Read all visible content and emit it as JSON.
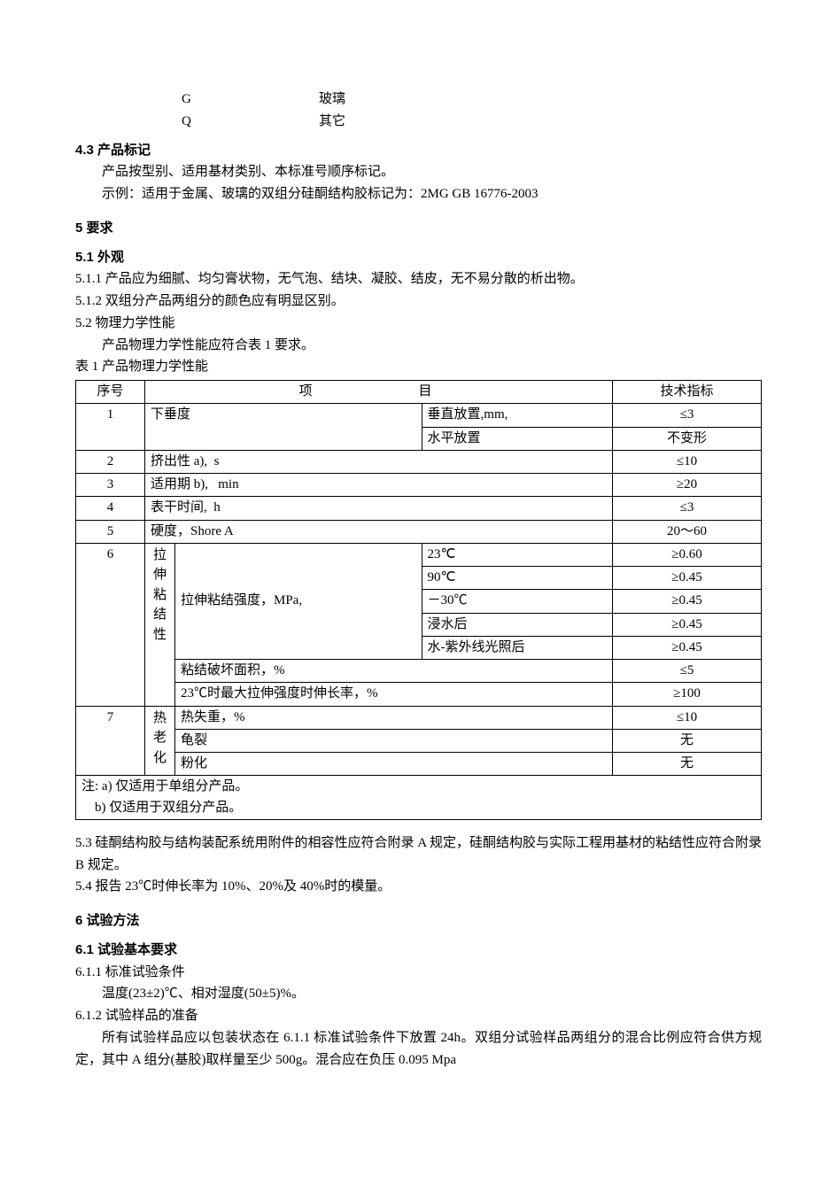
{
  "codes": {
    "g_code": "G",
    "g_label": "玻璃",
    "q_code": "Q",
    "q_label": "其它"
  },
  "s43": {
    "head": "4.3  产品标记",
    "p1": "产品按型别、适用基材类别、本标准号顺序标记。",
    "p2": "示例：适用于金属、玻璃的双组分硅酮结构胶标记为：2MG GB 16776-2003"
  },
  "s5": {
    "head": "5  要求",
    "s51_head": "5.1  外观",
    "s511": "5.1.1  产品应为细腻、均匀膏状物，无气泡、结块、凝胶、结皮，无不易分散的析出物。",
    "s512": "5.1.2  双组分产品两组分的颜色应有明显区别。",
    "s52_head": "5.2  物理力学性能",
    "s52_p": "产品物理力学性能应符合表 1 要求。",
    "table_title": "表 1  产品物理力学性能",
    "col_seq": "序号",
    "col_item": "项　　目",
    "col_tech": "技术指标",
    "row1_seq": "1",
    "row1_name": "下垂度",
    "row1_sub1": "垂直放置,mm,",
    "row1_val1": "≤3",
    "row1_sub2": "水平放置",
    "row1_val2": "不变形",
    "row2_seq": "2",
    "row2_name": "挤出性 a),  s",
    "row2_val": "≤10",
    "row3_seq": "3",
    "row3_name": "适用期 b),   min",
    "row3_val": "≥20",
    "row4_seq": "4",
    "row4_name": "表干时间,  h",
    "row4_val": "≤3",
    "row5_seq": "5",
    "row5_name": "硬度，Shore A",
    "row5_val": "20～60",
    "row6_seq": "6",
    "row6_vname": "拉伸粘结性",
    "row6_sub_name": "拉伸粘结强度，MPa,",
    "row6_c1": "23℃",
    "row6_v1": "≥0.60",
    "row6_c2": "90℃",
    "row6_v2": "≥0.45",
    "row6_c3": "－30℃",
    "row6_v3": "≥0.45",
    "row6_c4": "浸水后",
    "row6_v4": "≥0.45",
    "row6_c5": "水-紫外线光照后",
    "row6_v5": "≥0.45",
    "row6_area": "粘结破坏面积，%",
    "row6_area_v": "≤5",
    "row6_elong": "23℃时最大拉伸强度时伸长率，%",
    "row6_elong_v": "≥100",
    "row7_seq": "7",
    "row7_vname": "热老化",
    "row7_s1": "热失重，%",
    "row7_v1": "≤10",
    "row7_s2": "龟裂",
    "row7_v2": "无",
    "row7_s3": "粉化",
    "row7_v3": "无",
    "note_a": "注: a)  仅适用于单组分产品。",
    "note_b": "    b)  仅适用于双组分产品。",
    "s53": "5.3  硅酮结构胶与结构装配系统用附件的相容性应符合附录 A 规定，硅酮结构胶与实际工程用基材的粘结性应符合附录 B 规定。",
    "s54": "5.4  报告 23℃时伸长率为 10%、20%及 40%时的模量。"
  },
  "s6": {
    "head": "6  试验方法",
    "s61_head": "6.1  试验基本要求",
    "s611_head": "6.1.1  标准试验条件",
    "s611_p": "温度(23±2)℃、相对湿度(50±5)%。",
    "s612_head": "6.1.2  试验样品的准备",
    "s612_p": "所有试验样品应以包装状态在 6.1.1 标准试验条件下放置 24h。双组分试验样品两组分的混合比例应符合供方规定，其中 A 组分(基胶)取样量至少 500g。混合应在负压 0.095 Mpa"
  }
}
